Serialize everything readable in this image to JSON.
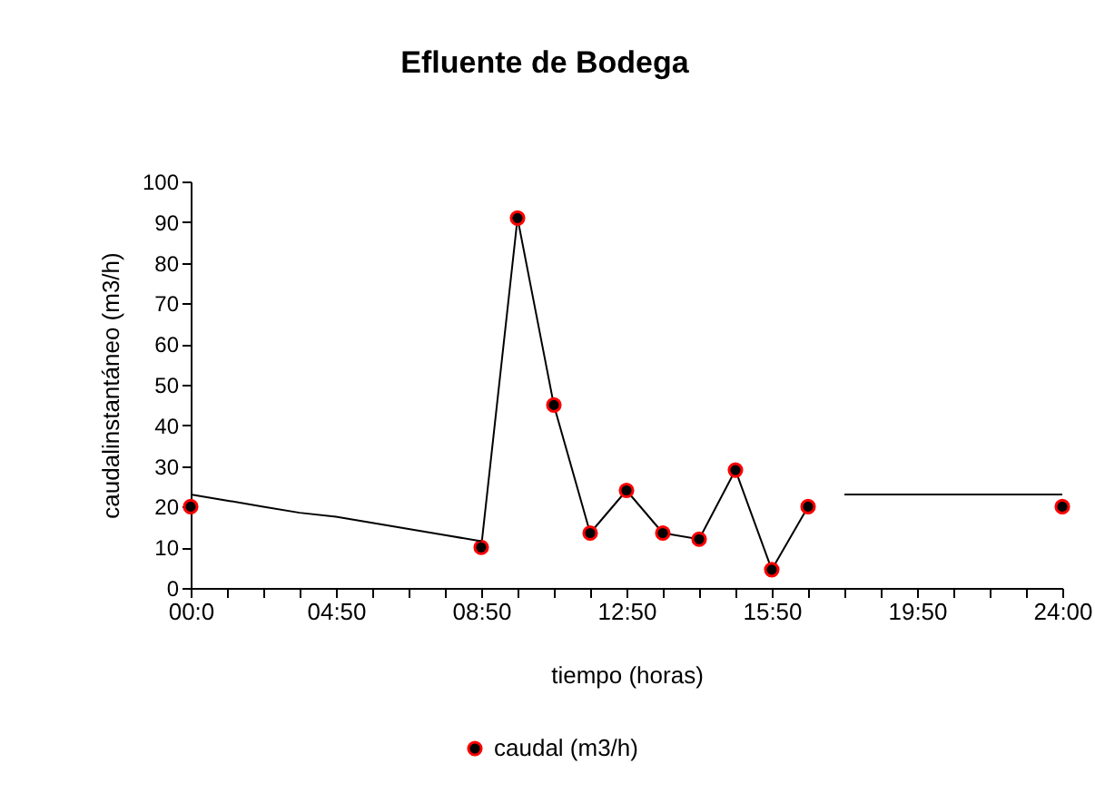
{
  "chart_data": {
    "type": "line",
    "title": "Efluente de Bodega",
    "xlabel": "tiempo (horas)",
    "ylabel": "caudalinstantáneo (m3/h)",
    "categories": [
      "00:0",
      null,
      null,
      null,
      "04:50",
      null,
      null,
      null,
      "08:50",
      null,
      null,
      null,
      "12:50",
      null,
      null,
      null,
      "15:50",
      null,
      null,
      null,
      "19:50",
      null,
      null,
      null,
      "24:00"
    ],
    "ylim": [
      0,
      100
    ],
    "yticks": [
      0,
      10,
      20,
      30,
      40,
      50,
      60,
      70,
      80,
      90,
      100
    ],
    "series": [
      {
        "name": "caudal (m3/h)",
        "color": "#000000",
        "marker": "circle",
        "values": [
          20,
          null,
          null,
          null,
          null,
          null,
          null,
          null,
          10,
          91,
          45,
          13.5,
          24,
          13.5,
          12,
          29,
          4.5,
          20,
          null,
          null,
          null,
          null,
          null,
          null,
          20
        ]
      },
      {
        "color": "#000000",
        "marker": "none",
        "values": [
          23,
          21.5,
          20,
          18.5,
          17.5,
          16,
          14.5,
          13,
          11.5,
          null,
          null,
          null,
          null,
          null,
          null,
          null,
          null,
          null,
          null,
          null,
          null,
          null,
          null,
          null,
          null
        ]
      },
      {
        "color": "#000000",
        "marker": "none",
        "values": [
          null,
          null,
          null,
          null,
          null,
          null,
          null,
          null,
          null,
          null,
          null,
          null,
          null,
          null,
          null,
          null,
          null,
          null,
          23,
          23,
          23,
          23,
          23,
          23,
          23
        ]
      }
    ],
    "grid": false,
    "legend": "bottom"
  }
}
